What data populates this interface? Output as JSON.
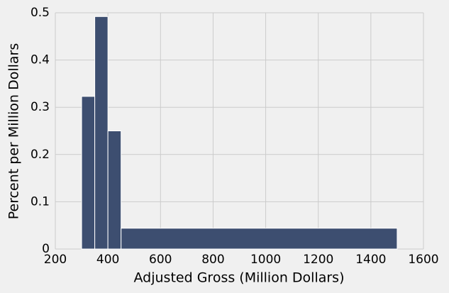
{
  "chart_data": {
    "type": "histogram",
    "xlabel": "Adjusted Gross (Million Dollars)",
    "ylabel": "Percent per Million Dollars",
    "bins": [
      300,
      350,
      400,
      450,
      1500
    ],
    "values": [
      0.323,
      0.492,
      0.25,
      0.044
    ],
    "color": "#3d4e70",
    "xlim": [
      200,
      1600
    ],
    "xticks": [
      200,
      400,
      600,
      800,
      1000,
      1200,
      1400,
      1600
    ],
    "ylim": [
      0,
      0.5
    ],
    "yticks": [
      0,
      0.1,
      0.2,
      0.3,
      0.4,
      0.5
    ],
    "grid": true
  }
}
